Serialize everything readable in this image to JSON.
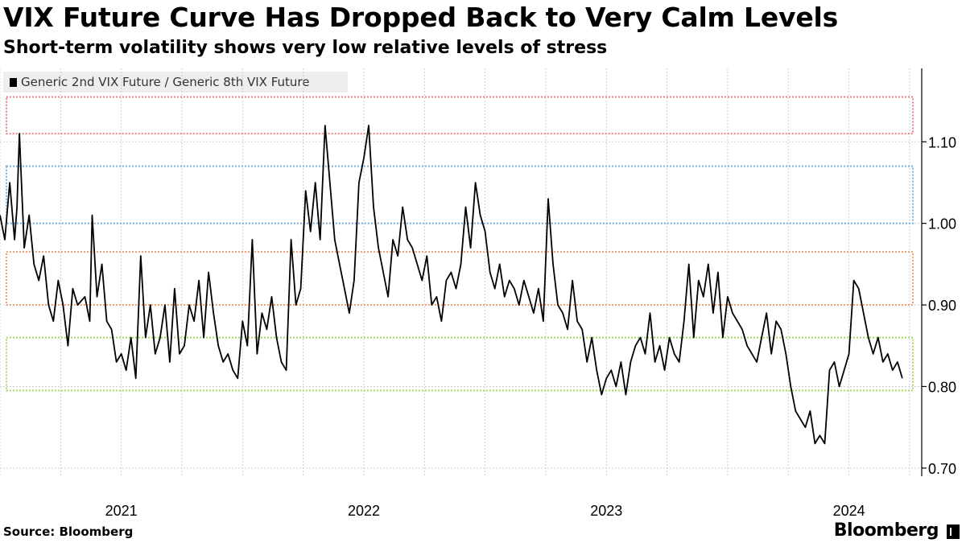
{
  "chart_data": {
    "type": "line",
    "title": "VIX Future Curve Has Dropped Back to Very Calm Levels",
    "subtitle": "Short-term volatility shows very low relative levels of stress",
    "legend": [
      {
        "label": "Generic 2nd VIX Future / Generic 8th VIX Future",
        "color": "#000000"
      }
    ],
    "legend_position": "top-left",
    "ylim": [
      0.69,
      1.19
    ],
    "yticks": [
      0.7,
      0.8,
      0.9,
      1.0,
      1.1
    ],
    "ytick_labels": [
      "0.70",
      "0.80",
      "0.90",
      "1.00",
      "1.10"
    ],
    "xlim": [
      2020.5,
      2024.3
    ],
    "xticks": [
      2021,
      2022,
      2023,
      2024
    ],
    "xtick_labels": [
      "2021",
      "2022",
      "2023",
      "2024"
    ],
    "xgrid_quarters": true,
    "bands": [
      {
        "low": 1.11,
        "high": 1.155,
        "color": "#e8808a"
      },
      {
        "low": 1.0,
        "high": 1.07,
        "color": "#7ab0e0"
      },
      {
        "low": 0.9,
        "high": 0.965,
        "color": "#f0a070"
      },
      {
        "low": 0.795,
        "high": 0.86,
        "color": "#a8d860"
      }
    ],
    "series": [
      {
        "name": "Generic 2nd VIX Future / Generic 8th VIX Future",
        "color": "#000000",
        "x": [
          2020.5,
          2020.52,
          2020.54,
          2020.56,
          2020.57,
          2020.58,
          2020.6,
          2020.62,
          2020.64,
          2020.66,
          2020.68,
          2020.7,
          2020.72,
          2020.74,
          2020.76,
          2020.78,
          2020.8,
          2020.82,
          2020.85,
          2020.87,
          2020.88,
          2020.9,
          2020.92,
          2020.94,
          2020.96,
          2020.98,
          2021.0,
          2021.02,
          2021.04,
          2021.06,
          2021.08,
          2021.1,
          2021.12,
          2021.14,
          2021.16,
          2021.18,
          2021.2,
          2021.22,
          2021.24,
          2021.26,
          2021.28,
          2021.3,
          2021.32,
          2021.34,
          2021.36,
          2021.38,
          2021.4,
          2021.42,
          2021.44,
          2021.46,
          2021.48,
          2021.5,
          2021.52,
          2021.54,
          2021.56,
          2021.58,
          2021.6,
          2021.62,
          2021.64,
          2021.66,
          2021.68,
          2021.7,
          2021.72,
          2021.74,
          2021.76,
          2021.78,
          2021.8,
          2021.82,
          2021.84,
          2021.86,
          2021.88,
          2021.9,
          2021.92,
          2021.94,
          2021.96,
          2021.98,
          2022.0,
          2022.02,
          2022.04,
          2022.06,
          2022.08,
          2022.1,
          2022.12,
          2022.14,
          2022.16,
          2022.18,
          2022.2,
          2022.22,
          2022.24,
          2022.26,
          2022.28,
          2022.3,
          2022.32,
          2022.34,
          2022.36,
          2022.38,
          2022.4,
          2022.42,
          2022.44,
          2022.46,
          2022.48,
          2022.5,
          2022.52,
          2022.54,
          2022.56,
          2022.58,
          2022.6,
          2022.62,
          2022.64,
          2022.66,
          2022.68,
          2022.7,
          2022.72,
          2022.74,
          2022.76,
          2022.78,
          2022.8,
          2022.82,
          2022.84,
          2022.86,
          2022.88,
          2022.9,
          2022.92,
          2022.94,
          2022.96,
          2022.98,
          2023.0,
          2023.02,
          2023.04,
          2023.06,
          2023.08,
          2023.1,
          2023.12,
          2023.14,
          2023.16,
          2023.18,
          2023.2,
          2023.22,
          2023.24,
          2023.26,
          2023.28,
          2023.3,
          2023.32,
          2023.34,
          2023.36,
          2023.38,
          2023.4,
          2023.42,
          2023.44,
          2023.46,
          2023.48,
          2023.5,
          2023.52,
          2023.54,
          2023.56,
          2023.58,
          2023.6,
          2023.62,
          2023.64,
          2023.66,
          2023.68,
          2023.7,
          2023.72,
          2023.74,
          2023.76,
          2023.78,
          2023.8,
          2023.82,
          2023.84,
          2023.86,
          2023.88,
          2023.9,
          2023.92,
          2023.94,
          2023.96,
          2023.98,
          2024.0,
          2024.02,
          2024.04,
          2024.06,
          2024.08,
          2024.1,
          2024.12,
          2024.14,
          2024.16,
          2024.18,
          2024.2,
          2024.22
        ],
        "values": [
          1.01,
          0.98,
          1.05,
          0.98,
          1.02,
          1.11,
          0.97,
          1.01,
          0.95,
          0.93,
          0.96,
          0.9,
          0.88,
          0.93,
          0.9,
          0.85,
          0.92,
          0.9,
          0.91,
          0.88,
          1.01,
          0.91,
          0.95,
          0.88,
          0.87,
          0.83,
          0.84,
          0.82,
          0.86,
          0.81,
          0.96,
          0.86,
          0.9,
          0.84,
          0.86,
          0.9,
          0.83,
          0.92,
          0.84,
          0.85,
          0.9,
          0.88,
          0.93,
          0.86,
          0.94,
          0.89,
          0.85,
          0.83,
          0.84,
          0.82,
          0.81,
          0.88,
          0.85,
          0.98,
          0.84,
          0.89,
          0.87,
          0.91,
          0.86,
          0.83,
          0.82,
          0.98,
          0.9,
          0.92,
          1.04,
          0.99,
          1.05,
          0.98,
          1.12,
          1.05,
          0.98,
          0.95,
          0.92,
          0.89,
          0.93,
          1.05,
          1.08,
          1.12,
          1.02,
          0.97,
          0.94,
          0.91,
          0.98,
          0.96,
          1.02,
          0.98,
          0.97,
          0.95,
          0.93,
          0.96,
          0.9,
          0.91,
          0.88,
          0.93,
          0.94,
          0.92,
          0.95,
          1.02,
          0.97,
          1.05,
          1.01,
          0.99,
          0.94,
          0.92,
          0.95,
          0.91,
          0.93,
          0.92,
          0.9,
          0.93,
          0.91,
          0.89,
          0.92,
          0.88,
          1.03,
          0.95,
          0.9,
          0.89,
          0.87,
          0.93,
          0.88,
          0.87,
          0.83,
          0.86,
          0.82,
          0.79,
          0.81,
          0.82,
          0.8,
          0.83,
          0.79,
          0.83,
          0.85,
          0.86,
          0.84,
          0.89,
          0.83,
          0.85,
          0.82,
          0.86,
          0.84,
          0.83,
          0.88,
          0.95,
          0.86,
          0.93,
          0.91,
          0.95,
          0.89,
          0.94,
          0.86,
          0.91,
          0.89,
          0.88,
          0.87,
          0.85,
          0.84,
          0.83,
          0.86,
          0.89,
          0.84,
          0.88,
          0.87,
          0.84,
          0.8,
          0.77,
          0.76,
          0.75,
          0.77,
          0.73,
          0.74,
          0.73,
          0.82,
          0.83,
          0.8,
          0.82,
          0.84,
          0.93,
          0.92,
          0.89,
          0.86,
          0.84,
          0.86,
          0.83,
          0.84,
          0.82,
          0.83,
          0.81
        ]
      }
    ]
  }
}
